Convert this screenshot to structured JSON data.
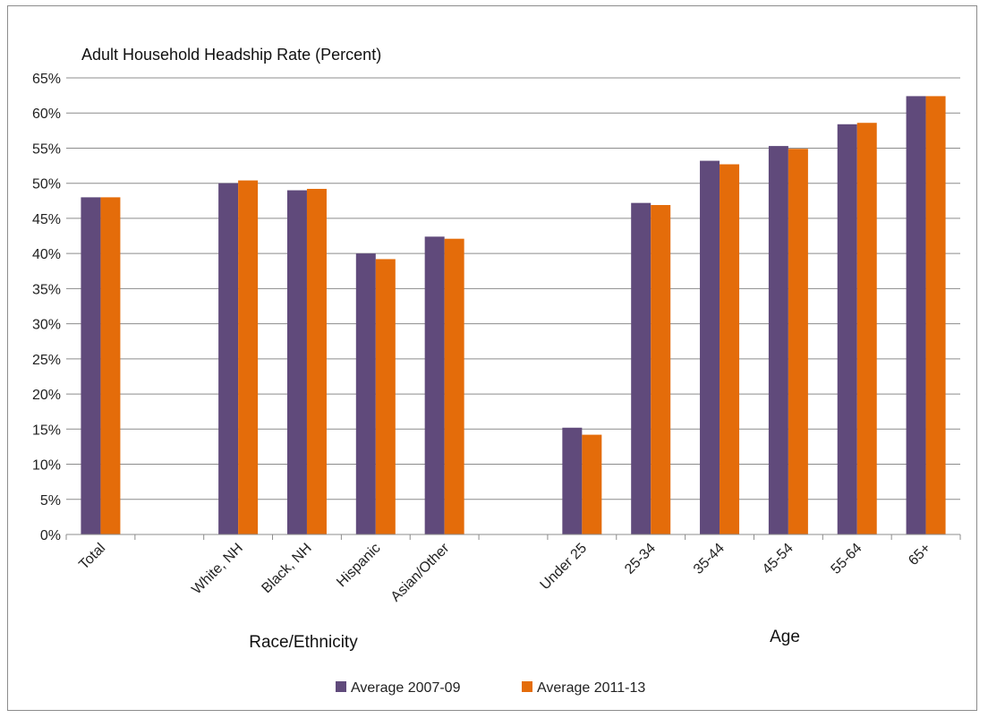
{
  "chart_data": {
    "type": "bar",
    "title": "Adult Household Headship Rate (Percent)",
    "categories": [
      "Total",
      "",
      "White, NH",
      "Black, NH",
      "Hispanic",
      "Asian/Other",
      "",
      "Under 25",
      "25-34",
      "35-44",
      "45-54",
      "55-64",
      "65+"
    ],
    "series": [
      {
        "name": "Average 2007-09",
        "color": "#604a7b",
        "values": [
          48.0,
          null,
          50.0,
          49.0,
          40.0,
          42.4,
          null,
          15.2,
          47.2,
          53.2,
          55.3,
          58.4,
          62.4
        ]
      },
      {
        "name": "Average 2011-13",
        "color": "#e46c0a",
        "values": [
          48.0,
          null,
          50.4,
          49.2,
          39.2,
          42.1,
          null,
          14.2,
          46.9,
          52.7,
          54.9,
          58.6,
          62.4
        ]
      }
    ],
    "ylim": [
      0,
      65
    ],
    "yticks": [
      "0%",
      "5%",
      "10%",
      "15%",
      "20%",
      "25%",
      "30%",
      "35%",
      "40%",
      "45%",
      "50%",
      "55%",
      "60%",
      "65%"
    ],
    "group_labels": [
      "Race/Ethnicity",
      "Age"
    ],
    "grid": true,
    "legend": "bottom"
  }
}
